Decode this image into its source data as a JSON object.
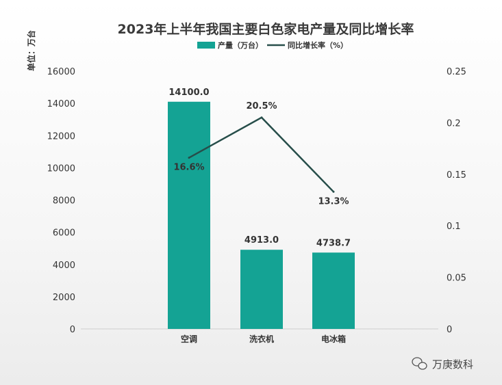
{
  "chart_data": {
    "type": "bar",
    "title": "2023年上半年我国主要白色家电产量及同比增长率",
    "unit_label": "单位：万台",
    "categories": [
      "空调",
      "洗衣机",
      "电冰箱"
    ],
    "series": [
      {
        "name": "产量（万台）",
        "type": "bar",
        "axis": "left",
        "values": [
          14100.0,
          4913.0,
          4738.7
        ],
        "labels": [
          "14100.0",
          "4913.0",
          "4738.7"
        ],
        "color": "#14a394"
      },
      {
        "name": "同比增长率（%）",
        "type": "line",
        "axis": "right",
        "values": [
          0.166,
          0.205,
          0.133
        ],
        "labels": [
          "16.6%",
          "20.5%",
          "13.3%"
        ],
        "color": "#274e4a"
      }
    ],
    "y_left": {
      "range": [
        0,
        16000
      ],
      "ticks": [
        "0",
        "2000",
        "4000",
        "6000",
        "8000",
        "10000",
        "12000",
        "14000",
        "16000"
      ]
    },
    "y_right": {
      "range": [
        0,
        0.25
      ],
      "ticks": [
        "0",
        "0.05",
        "0.1",
        "0.15",
        "0.2",
        "0.25"
      ]
    },
    "legend_position": "top",
    "grid": false
  },
  "watermark": {
    "icon": "wechat-icon",
    "text": "万庚数科"
  }
}
